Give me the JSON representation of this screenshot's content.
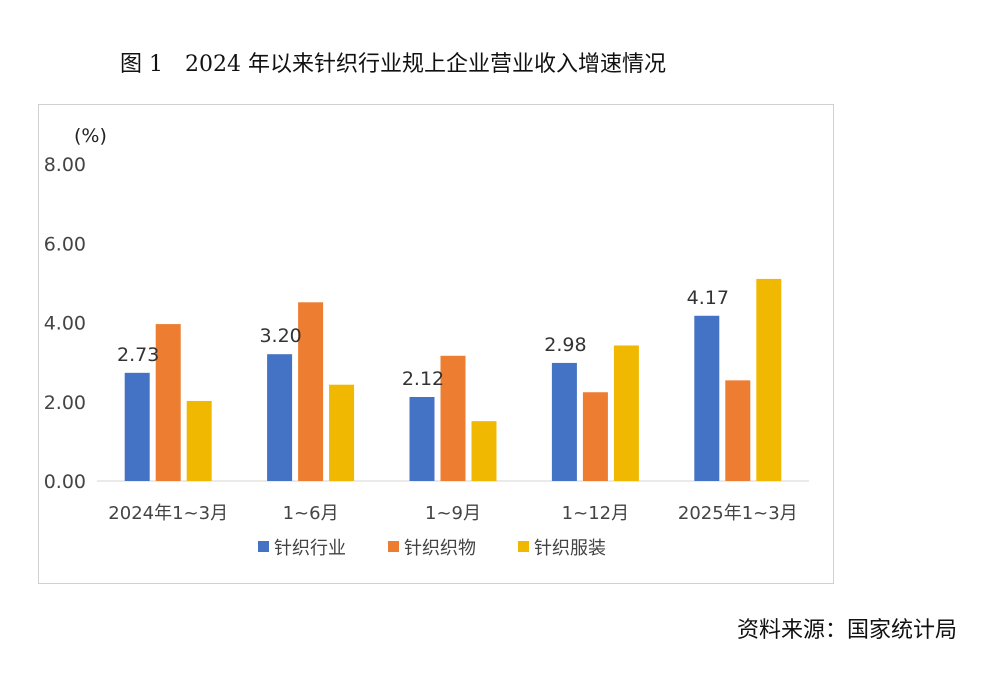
{
  "figure_title": "图 1　2024 年以来针织行业规上企业营业收入增速情况",
  "source_note": "资料来源：国家统计局",
  "chart_data": {
    "type": "bar",
    "ylabel": "(%)",
    "ylim": [
      0,
      8
    ],
    "yticks": [
      "0.00",
      "2.00",
      "4.00",
      "6.00",
      "8.00"
    ],
    "grid": false,
    "legend_position": "bottom",
    "categories": [
      "2024年1~3月",
      "1~6月",
      "1~9月",
      "1~12月",
      "2025年1~3月"
    ],
    "series": [
      {
        "name": "针织行业",
        "color": "#4472C4",
        "values": [
          2.73,
          3.2,
          2.12,
          2.98,
          4.17
        ],
        "labels": [
          "2.73",
          "3.20",
          "2.12",
          "2.98",
          "4.17"
        ]
      },
      {
        "name": "针织织物",
        "color": "#ED7D31",
        "values": [
          3.96,
          4.51,
          3.16,
          2.24,
          2.54
        ],
        "labels": [
          "",
          "",
          "",
          "",
          ""
        ]
      },
      {
        "name": "针织服装",
        "color": "#F0B800",
        "values": [
          2.02,
          2.43,
          1.51,
          3.42,
          5.1
        ],
        "labels": [
          "",
          "",
          "",
          "",
          ""
        ]
      }
    ]
  }
}
